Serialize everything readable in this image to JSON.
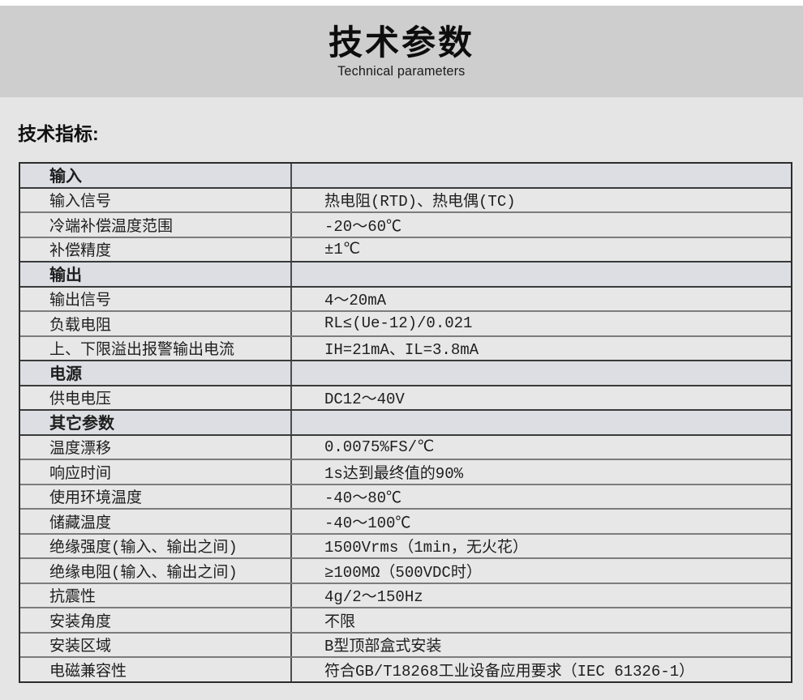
{
  "banner": {
    "title": "技术参数",
    "subtitle": "Technical parameters"
  },
  "heading": "技术指标:",
  "table": {
    "rows": [
      {
        "type": "section",
        "label": "输入",
        "value": ""
      },
      {
        "type": "data",
        "label": "输入信号",
        "value": "热电阻(RTD)、热电偶(TC)"
      },
      {
        "type": "data",
        "label": "冷端补偿温度范围",
        "value": "-20～60℃"
      },
      {
        "type": "data",
        "label": "补偿精度",
        "value": "±1℃"
      },
      {
        "type": "section",
        "label": "输出",
        "value": ""
      },
      {
        "type": "data",
        "label": "输出信号",
        "value": "4～20mA"
      },
      {
        "type": "data",
        "label": "负载电阻",
        "value": "RL≤(Ue-12)/0.021"
      },
      {
        "type": "data",
        "label": "上、下限溢出报警输出电流",
        "value": "IH=21mA、IL=3.8mA"
      },
      {
        "type": "section",
        "label": "电源",
        "value": ""
      },
      {
        "type": "data",
        "label": "供电电压",
        "value": "DC12～40V"
      },
      {
        "type": "section",
        "label": "其它参数",
        "value": ""
      },
      {
        "type": "data",
        "label": "温度漂移",
        "value": "0.0075%FS/℃"
      },
      {
        "type": "data",
        "label": "响应时间",
        "value": "1s达到最终值的90%"
      },
      {
        "type": "data",
        "label": "使用环境温度",
        "value": "-40～80℃"
      },
      {
        "type": "data",
        "label": "储藏温度",
        "value": "-40～100℃"
      },
      {
        "type": "data",
        "label": "绝缘强度(输入、输出之间)",
        "value": "1500Vrms（1min，无火花）"
      },
      {
        "type": "data",
        "label": "绝缘电阻(输入、输出之间)",
        "value": "≥100MΩ（500VDC时）"
      },
      {
        "type": "data",
        "label": "抗震性",
        "value": "4g/2～150Hz"
      },
      {
        "type": "data",
        "label": "安装角度",
        "value": "不限"
      },
      {
        "type": "data",
        "label": "安装区域",
        "value": "B型顶部盒式安装"
      },
      {
        "type": "data",
        "label": "电磁兼容性",
        "value": "符合GB/T18268工业设备应用要求（IEC 61326-1）"
      }
    ]
  },
  "colors": {
    "page_bg": "#e6e5e6",
    "banner_bg": "#cecece",
    "row_bg": "#e8e7e8",
    "section_row_bg": "#dcdee3",
    "border_dark": "#2c2c2c",
    "border_light": "#7c7c7c",
    "column_divider": "#4e4e4e",
    "text": "#1e1e1e"
  }
}
